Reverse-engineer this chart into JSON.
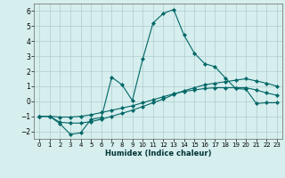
{
  "xlabel": "Humidex (Indice chaleur)",
  "xlim": [
    -0.5,
    23.5
  ],
  "ylim": [
    -2.5,
    6.5
  ],
  "yticks": [
    -2,
    -1,
    0,
    1,
    2,
    3,
    4,
    5,
    6
  ],
  "xticks": [
    0,
    1,
    2,
    3,
    4,
    5,
    6,
    7,
    8,
    9,
    10,
    11,
    12,
    13,
    14,
    15,
    16,
    17,
    18,
    19,
    20,
    21,
    22,
    23
  ],
  "background_color": "#d6eeee",
  "grid_color": "#b0cccc",
  "line_color": "#006666",
  "series": [
    {
      "x": [
        0,
        1,
        2,
        3,
        4,
        5,
        6,
        7,
        8,
        9,
        10,
        11,
        12,
        13,
        14,
        15,
        16,
        17,
        18,
        19,
        20,
        21,
        22,
        23
      ],
      "y": [
        -1.0,
        -1.0,
        -1.5,
        -2.2,
        -2.1,
        -1.2,
        -1.1,
        1.6,
        1.1,
        0.05,
        2.8,
        5.2,
        5.85,
        6.1,
        4.4,
        3.2,
        2.5,
        2.3,
        1.55,
        0.85,
        0.8,
        -0.15,
        -0.1,
        -0.1
      ]
    },
    {
      "x": [
        0,
        1,
        2,
        3,
        4,
        5,
        6,
        7,
        8,
        9,
        10,
        11,
        12,
        13,
        14,
        15,
        16,
        17,
        18,
        19,
        20,
        21,
        22,
        23
      ],
      "y": [
        -1.0,
        -1.0,
        -1.05,
        -1.05,
        -1.0,
        -0.9,
        -0.75,
        -0.6,
        -0.45,
        -0.3,
        -0.1,
        0.1,
        0.3,
        0.5,
        0.65,
        0.75,
        0.85,
        0.9,
        0.9,
        0.9,
        0.9,
        0.75,
        0.55,
        0.4
      ]
    },
    {
      "x": [
        0,
        1,
        2,
        3,
        4,
        5,
        6,
        7,
        8,
        9,
        10,
        11,
        12,
        13,
        14,
        15,
        16,
        17,
        18,
        19,
        20,
        21,
        22,
        23
      ],
      "y": [
        -1.0,
        -1.0,
        -1.4,
        -1.45,
        -1.45,
        -1.35,
        -1.2,
        -1.0,
        -0.8,
        -0.6,
        -0.35,
        -0.1,
        0.15,
        0.45,
        0.7,
        0.9,
        1.1,
        1.2,
        1.3,
        1.4,
        1.5,
        1.35,
        1.2,
        1.0
      ]
    }
  ]
}
